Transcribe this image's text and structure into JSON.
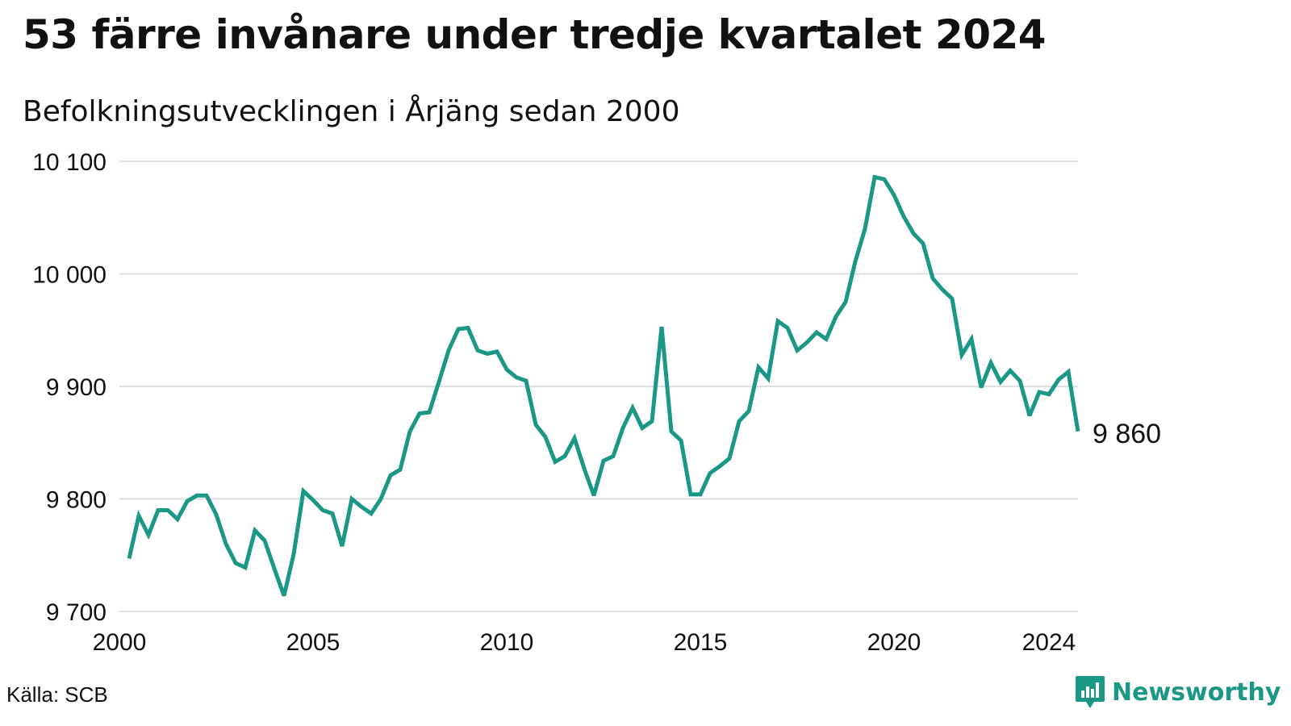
{
  "title": "53 färre invånare under tredje kvartalet 2024",
  "subtitle": "Befolkningsutvecklingen i Årjäng sedan 2000",
  "source": "Källa: SCB",
  "brand": {
    "name": "Newsworthy",
    "icon": "newsworthy-logo-icon",
    "color": "#1a9885"
  },
  "chart_data": {
    "type": "line",
    "title": "53 färre invånare under tredje kvartalet 2024",
    "subtitle": "Befolkningsutvecklingen i Årjäng sedan 2000",
    "xlabel": "",
    "ylabel": "",
    "line_color": "#1a9885",
    "grid": true,
    "xlim": [
      2000,
      2024.75
    ],
    "ylim": [
      9700,
      10100
    ],
    "y_ticks": [
      9700,
      9800,
      9900,
      10000,
      10100
    ],
    "y_tick_labels": [
      "9 700",
      "9 800",
      "9 900",
      "10 000",
      "10 100"
    ],
    "x_ticks": [
      2000,
      2005,
      2010,
      2015,
      2020,
      2024
    ],
    "x_tick_labels": [
      "2000",
      "2005",
      "2010",
      "2015",
      "2020",
      "2024"
    ],
    "end_label": "9 860",
    "series": [
      {
        "x": [
          2000.25,
          2000.5,
          2000.75,
          2001,
          2001.25,
          2001.5,
          2001.75,
          2002,
          2002.25,
          2002.5,
          2002.75,
          2003,
          2003.25,
          2003.5,
          2003.75,
          2004,
          2004.25,
          2004.5,
          2004.75,
          2005,
          2005.25,
          2005.5,
          2005.75,
          2006,
          2006.25,
          2006.5,
          2006.75,
          2007,
          2007.25,
          2007.5,
          2007.75,
          2008,
          2008.25,
          2008.5,
          2008.75,
          2009,
          2009.25,
          2009.5,
          2009.75,
          2010,
          2010.25,
          2010.5,
          2010.75,
          2011,
          2011.25,
          2011.5,
          2011.75,
          2012,
          2012.25,
          2012.5,
          2012.75,
          2013,
          2013.25,
          2013.5,
          2013.75,
          2014,
          2014.25,
          2014.5,
          2014.75,
          2015,
          2015.25,
          2015.5,
          2015.75,
          2016,
          2016.25,
          2016.5,
          2016.75,
          2017,
          2017.25,
          2017.5,
          2017.75,
          2018,
          2018.25,
          2018.5,
          2018.75,
          2019,
          2019.25,
          2019.5,
          2019.75,
          2020,
          2020.25,
          2020.5,
          2020.75,
          2021,
          2021.25,
          2021.5,
          2021.75,
          2022,
          2022.25,
          2022.5,
          2022.75,
          2023,
          2023.25,
          2023.5,
          2023.75,
          2024,
          2024.25,
          2024.5,
          2024.75
        ],
        "values": [
          9747,
          9785,
          9768,
          9790,
          9790,
          9782,
          9798,
          9803,
          9803,
          9786,
          9760,
          9743,
          9739,
          9772,
          9763,
          9738,
          9714,
          9751,
          9807,
          9799,
          9790,
          9787,
          9758,
          9800,
          9793,
          9787,
          9800,
          9821,
          9826,
          9860,
          9876,
          9877,
          9904,
          9932,
          9951,
          9952,
          9932,
          9929,
          9931,
          9915,
          9908,
          9905,
          9866,
          9855,
          9833,
          9838,
          9854,
          9827,
          9803,
          9834,
          9838,
          9863,
          9881,
          9863,
          9869,
          9953,
          9860,
          9852,
          9804,
          9804,
          9823,
          9829,
          9836,
          9869,
          9878,
          9917,
          9907,
          9958,
          9952,
          9932,
          9939,
          9948,
          9942,
          9962,
          9975,
          10011,
          10040,
          10086,
          10084,
          10070,
          10051,
          10036,
          10027,
          9996,
          9986,
          9978,
          9928,
          9942,
          9899,
          9921,
          9904,
          9914,
          9905,
          9874,
          9895,
          9893,
          9906,
          9913,
          9860
        ]
      }
    ]
  }
}
